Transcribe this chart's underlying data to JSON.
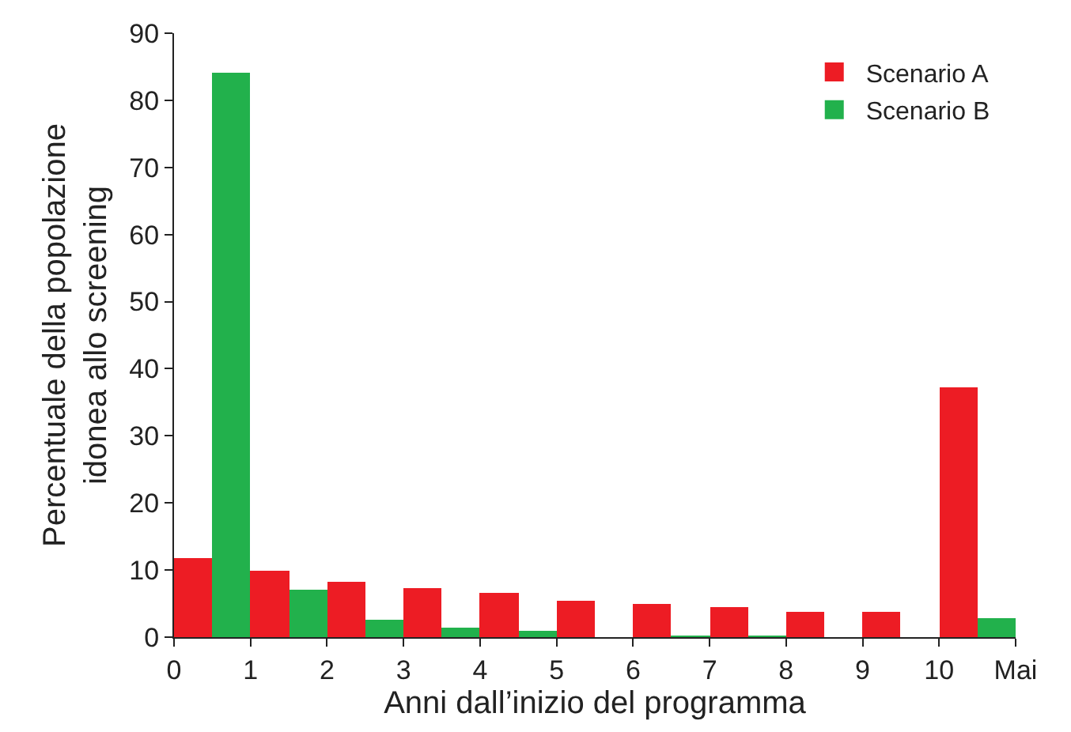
{
  "chart_data": {
    "type": "bar",
    "xlabel": "Anni dall’inizio del programma",
    "ylabel": "Percentuale della popolazione\nidonea allo screening",
    "x": [
      0.5,
      1.5,
      2.5,
      3.5,
      4.5,
      5.5,
      6.5,
      7.5,
      8.5,
      9.5,
      10.5
    ],
    "series": [
      {
        "name": "Scenario A",
        "color": "#ed1c24",
        "values": [
          11.7,
          9.9,
          8.3,
          7.4,
          6.6,
          5.5,
          4.9,
          4.4,
          3.8,
          3.8,
          37.2
        ]
      },
      {
        "name": "Scenario B",
        "color": "#22b14c",
        "values": [
          84.2,
          7.0,
          2.6,
          1.5,
          0.9,
          0,
          0.2,
          0.2,
          0,
          0,
          2.9
        ]
      }
    ],
    "xlim": [
      0,
      11
    ],
    "xticks": [
      0,
      1,
      2,
      3,
      4,
      5,
      6,
      7,
      8,
      9,
      10,
      {
        "value": 11,
        "label": "Mai"
      }
    ],
    "ylim": [
      0,
      90
    ],
    "yticks": [
      0,
      10,
      20,
      30,
      40,
      50,
      60,
      70,
      80,
      90
    ],
    "legend": "top right"
  }
}
